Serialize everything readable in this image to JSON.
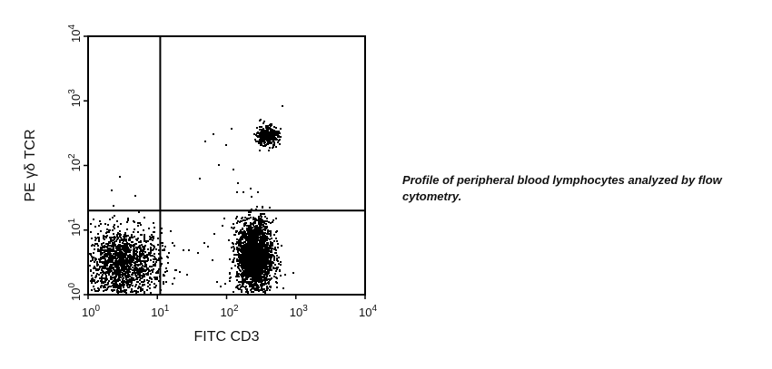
{
  "caption": "Profile of peripheral blood lymphocytes analyzed by flow cytometry.",
  "chart_data": {
    "type": "scatter",
    "title": "",
    "xlabel": "FITC CD3",
    "ylabel": "PE γδ TCR",
    "x_scale": "log",
    "y_scale": "log",
    "xlim": [
      1,
      10000
    ],
    "ylim": [
      1,
      10000
    ],
    "x_ticks": [
      {
        "base": "10",
        "exp": "0"
      },
      {
        "base": "10",
        "exp": "1"
      },
      {
        "base": "10",
        "exp": "2"
      },
      {
        "base": "10",
        "exp": "3"
      },
      {
        "base": "10",
        "exp": "4"
      }
    ],
    "y_ticks": [
      {
        "base": "10",
        "exp": "0"
      },
      {
        "base": "10",
        "exp": "1"
      },
      {
        "base": "10",
        "exp": "2"
      },
      {
        "base": "10",
        "exp": "3"
      },
      {
        "base": "10",
        "exp": "4"
      }
    ],
    "quadrant_gates": {
      "x": 11,
      "y": 20
    },
    "grid": false,
    "point_color": "#000000",
    "populations": [
      {
        "x_center": 3,
        "y_center": 3,
        "x_spread_decades": 0.28,
        "y_spread_decades": 0.28,
        "count": 1500
      },
      {
        "x_center": 250,
        "y_center": 4,
        "x_spread_decades": 0.13,
        "y_spread_decades": 0.28,
        "count": 2300
      },
      {
        "x_center": 380,
        "y_center": 300,
        "x_spread_decades": 0.08,
        "y_spread_decades": 0.08,
        "count": 340
      }
    ],
    "scattered_points": [
      {
        "x": 1.0,
        "y": 230
      },
      {
        "x": 2.8,
        "y": 70
      },
      {
        "x": 2.1,
        "y": 43
      },
      {
        "x": 4.6,
        "y": 35
      },
      {
        "x": 40,
        "y": 65
      },
      {
        "x": 48,
        "y": 240
      },
      {
        "x": 62,
        "y": 310
      },
      {
        "x": 75,
        "y": 105
      },
      {
        "x": 95,
        "y": 215
      },
      {
        "x": 115,
        "y": 385
      },
      {
        "x": 122,
        "y": 90
      },
      {
        "x": 140,
        "y": 55
      },
      {
        "x": 170,
        "y": 40
      },
      {
        "x": 215,
        "y": 46
      },
      {
        "x": 290,
        "y": 175
      },
      {
        "x": 620,
        "y": 870
      },
      {
        "x": 15,
        "y": 10
      },
      {
        "x": 17,
        "y": 6
      },
      {
        "x": 18,
        "y": 2.5
      },
      {
        "x": 26,
        "y": 2.1
      },
      {
        "x": 28,
        "y": 5
      },
      {
        "x": 38,
        "y": 4.5
      },
      {
        "x": 46,
        "y": 6.5
      },
      {
        "x": 53,
        "y": 5.8
      },
      {
        "x": 85,
        "y": 12
      },
      {
        "x": 65,
        "y": 9
      },
      {
        "x": 60,
        "y": 3.5
      },
      {
        "x": 70,
        "y": 1.6
      },
      {
        "x": 80,
        "y": 1.4
      }
    ]
  }
}
